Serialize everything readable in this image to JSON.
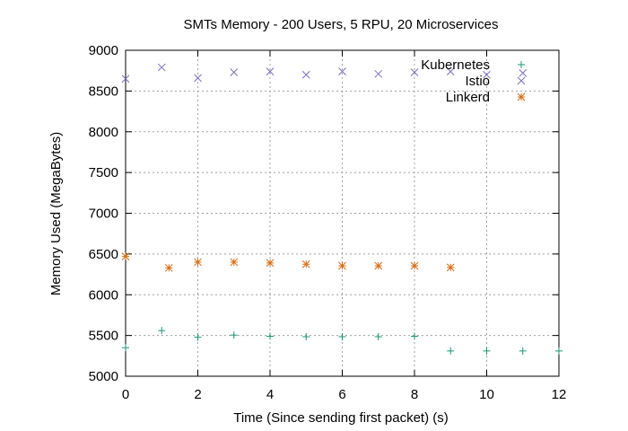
{
  "chart_data": {
    "type": "scatter",
    "title": "SMTs Memory - 200 Users, 5 RPU, 20 Microservices",
    "xlabel": "Time (Since sending first packet) (s)",
    "ylabel": "Memory Used (MegaBytes)",
    "xlim": [
      0,
      12
    ],
    "ylim": [
      5000,
      9000
    ],
    "xticks": [
      0,
      2,
      4,
      6,
      8,
      10,
      12
    ],
    "yticks": [
      5000,
      5500,
      6000,
      6500,
      7000,
      7500,
      8000,
      8500,
      9000
    ],
    "grid": true,
    "legend_position": "top-right",
    "series": [
      {
        "name": "Kubernetes",
        "marker": "plus",
        "color": "#1a9673",
        "points": [
          [
            0,
            5350
          ],
          [
            1,
            5560
          ],
          [
            2,
            5480
          ],
          [
            3,
            5505
          ],
          [
            4,
            5490
          ],
          [
            5,
            5485
          ],
          [
            6,
            5485
          ],
          [
            7,
            5485
          ],
          [
            8,
            5490
          ],
          [
            9,
            5310
          ],
          [
            10,
            5310
          ],
          [
            11,
            5310
          ],
          [
            12,
            5310
          ]
        ]
      },
      {
        "name": "Istio",
        "marker": "cross",
        "color": "#7870c0",
        "points": [
          [
            0,
            8650
          ],
          [
            1,
            8790
          ],
          [
            2,
            8660
          ],
          [
            3,
            8730
          ],
          [
            4,
            8740
          ],
          [
            5,
            8700
          ],
          [
            6,
            8740
          ],
          [
            7,
            8710
          ],
          [
            8,
            8730
          ],
          [
            9,
            8740
          ],
          [
            10,
            8700
          ],
          [
            11,
            8720
          ]
        ]
      },
      {
        "name": "Linkerd",
        "marker": "star",
        "color": "#d56a10",
        "points": [
          [
            0,
            6470
          ],
          [
            1.2,
            6330
          ],
          [
            2,
            6400
          ],
          [
            3,
            6400
          ],
          [
            4,
            6390
          ],
          [
            5,
            6375
          ],
          [
            6,
            6355
          ],
          [
            7,
            6355
          ],
          [
            8,
            6355
          ],
          [
            9,
            6335
          ]
        ]
      }
    ]
  }
}
